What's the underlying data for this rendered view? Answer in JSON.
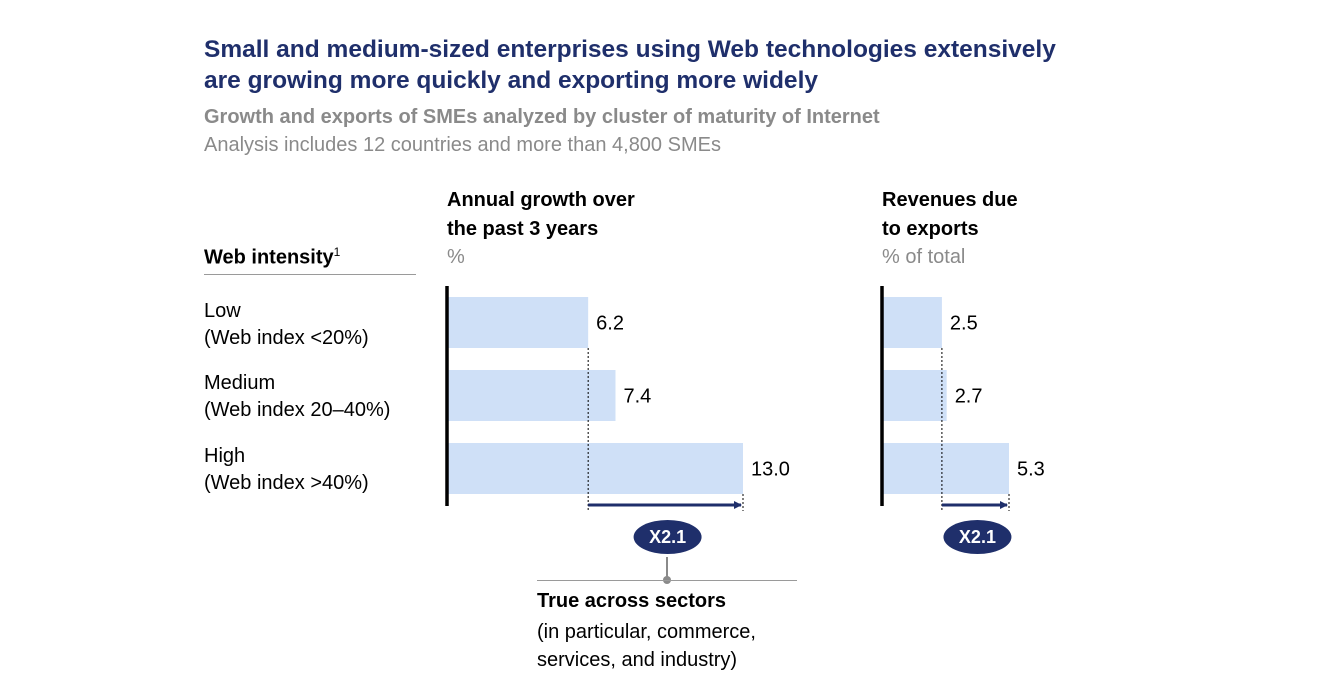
{
  "title_line1": "Small and medium-sized enterprises using Web technologies extensively",
  "title_line2": "are growing more quickly and exporting more widely",
  "subtitle": "Growth and exports of SMEs analyzed by cluster of maturity of Internet",
  "note": "Analysis includes 12 countries and more than 4,800 SMEs",
  "row_header": {
    "label": "Web intensity",
    "footnote": "1"
  },
  "rows": [
    {
      "line1": "Low",
      "line2": "(Web index <20%)"
    },
    {
      "line1": "Medium",
      "line2": "(Web index 20–40%)"
    },
    {
      "line1": "High",
      "line2": "(Web index >40%)"
    }
  ],
  "callout": {
    "title": "True across sectors",
    "line1": "(in particular, commerce,",
    "line2": "services, and industry)"
  },
  "colors": {
    "bar": "#cfe0f7",
    "accent": "#1f2f6b",
    "badge": "#1f2f6b",
    "muted": "#8a8a8a"
  },
  "chart_data": [
    {
      "type": "bar",
      "orientation": "horizontal",
      "title_line1": "Annual growth over",
      "title_line2": "the past 3 years",
      "unit": "%",
      "categories": [
        "Low",
        "Medium",
        "High"
      ],
      "values": [
        6.2,
        7.4,
        13.0
      ],
      "value_labels": [
        "6.2",
        "7.4",
        "13.0"
      ],
      "multiplier_label": "X2.1",
      "xlim": [
        0,
        13.0
      ]
    },
    {
      "type": "bar",
      "orientation": "horizontal",
      "title_line1": "Revenues due",
      "title_line2": "to exports",
      "unit": "% of total",
      "categories": [
        "Low",
        "Medium",
        "High"
      ],
      "values": [
        2.5,
        2.7,
        5.3
      ],
      "value_labels": [
        "2.5",
        "2.7",
        "5.3"
      ],
      "multiplier_label": "X2.1",
      "xlim": [
        0,
        5.3
      ]
    }
  ]
}
